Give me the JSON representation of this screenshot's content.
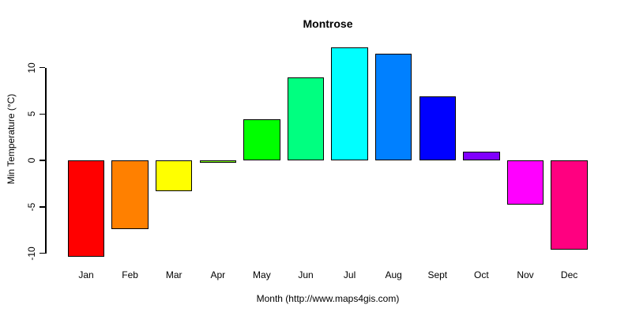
{
  "chart_data": {
    "type": "bar",
    "title": "Montrose",
    "xlabel": "Month (http://www.maps4gis.com)",
    "ylabel": "Min Temperature (°C)",
    "categories": [
      "Jan",
      "Feb",
      "Mar",
      "Apr",
      "May",
      "Jun",
      "Jul",
      "Aug",
      "Sept",
      "Oct",
      "Nov",
      "Dec"
    ],
    "values": [
      -10.4,
      -7.4,
      -3.3,
      -0.2,
      4.4,
      8.9,
      12.2,
      11.5,
      6.9,
      0.9,
      -4.8,
      -9.6
    ],
    "bar_colors": [
      "#FF0000",
      "#FF8000",
      "#FFFF00",
      "#80FF00",
      "#00FF00",
      "#00FF80",
      "#00FFFF",
      "#0080FF",
      "#0000FF",
      "#8000FF",
      "#FF00FF",
      "#FF0080"
    ],
    "yticks": [
      -10,
      -5,
      0,
      5,
      10
    ],
    "ylim": [
      -10.4,
      12.2
    ],
    "grid": false,
    "legend_position": "none",
    "background_color": "#FFFFFF",
    "axis_color": "#000000",
    "text_color": "#000000"
  }
}
